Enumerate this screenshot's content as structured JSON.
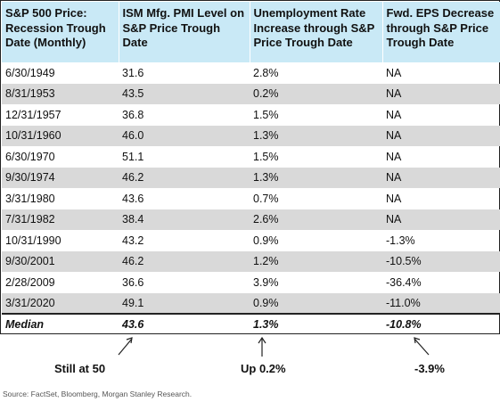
{
  "table": {
    "headers": [
      "S&P 500 Price: Recession Trough Date (Monthly)",
      "ISM Mfg. PMI Level on S&P Price Trough Date",
      "Unemployment Rate Increase through S&P Price Trough Date",
      "Fwd. EPS Decrease through S&P Price Trough Date"
    ],
    "rows": [
      [
        "6/30/1949",
        "31.6",
        "2.8%",
        "NA"
      ],
      [
        "8/31/1953",
        "43.5",
        "0.2%",
        "NA"
      ],
      [
        "12/31/1957",
        "36.8",
        "1.5%",
        "NA"
      ],
      [
        "10/31/1960",
        "46.0",
        "1.3%",
        "NA"
      ],
      [
        "6/30/1970",
        "51.1",
        "1.5%",
        "NA"
      ],
      [
        "9/30/1974",
        "46.2",
        "1.3%",
        "NA"
      ],
      [
        "3/31/1980",
        "43.6",
        "0.7%",
        "NA"
      ],
      [
        "7/31/1982",
        "38.4",
        "2.6%",
        "NA"
      ],
      [
        "10/31/1990",
        "43.2",
        "0.9%",
        "-1.3%"
      ],
      [
        "9/30/2001",
        "46.2",
        "1.2%",
        "-10.5%"
      ],
      [
        "2/28/2009",
        "36.6",
        "3.9%",
        "-36.4%"
      ],
      [
        "3/31/2020",
        "49.1",
        "0.9%",
        "-11.0%"
      ]
    ],
    "median": [
      "Median",
      "43.6",
      "1.3%",
      "-10.8%"
    ]
  },
  "annotations": {
    "pmi": "Still at 50",
    "unemployment": "Up 0.2%",
    "eps": "-3.9%"
  },
  "source": "Source: FactSet, Bloomberg, Morgan Stanley Research."
}
